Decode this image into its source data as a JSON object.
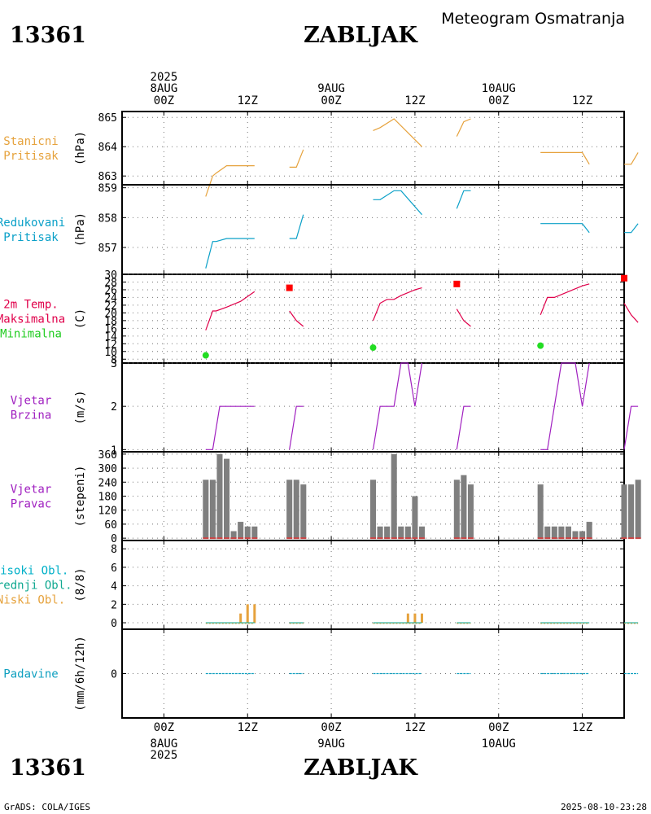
{
  "header": {
    "station_id": "13361",
    "station_name": "ZABLJAK",
    "subtitle": "Meteogram Osmatranja",
    "footer_left": "GrADS: COLA/IGES",
    "footer_right": "2025-08-10-23:28"
  },
  "colors": {
    "pressure": "#e6a23c",
    "reduced": "#0aa0c8",
    "tmax": "#e0004a",
    "tmin": "#22cc22",
    "wind": "#a020c0",
    "bars": "#7f7f7f",
    "highcloud": "#00b0c8",
    "midcloud": "#10a890",
    "lowcloud": "#e6a23c",
    "precip": "#10a0c0",
    "marker_max": "#ff0000",
    "marker_min": "#22dd22",
    "dirbase": "#cc4444"
  },
  "chart_data": {
    "type": "line",
    "x_axis": {
      "unit": "hours since 2025-08-08 00Z",
      "range": [
        -6,
        66
      ],
      "ticks": [
        0,
        12,
        24,
        36,
        48,
        60
      ],
      "hour_labels": [
        "00Z",
        "12Z",
        "00Z",
        "12Z",
        "00Z",
        "12Z"
      ],
      "top_date_labels": [
        {
          "x": 0,
          "lines": [
            "2025",
            "8AUG"
          ]
        },
        {
          "x": 24,
          "lines": [
            "9AUG"
          ]
        },
        {
          "x": 48,
          "lines": [
            "10AUG"
          ]
        }
      ],
      "bottom_date_labels": [
        {
          "x": 0,
          "lines": [
            "8AUG",
            "2025"
          ]
        },
        {
          "x": 24,
          "lines": [
            "9AUG"
          ]
        },
        {
          "x": 48,
          "lines": [
            "10AUG"
          ]
        }
      ]
    },
    "panels": [
      {
        "id": "station-pressure",
        "labels": [
          "Stanicni",
          "Pritisak"
        ],
        "label_colors": [
          "pressure",
          "pressure"
        ],
        "unit": "(hPa)",
        "ylim": [
          862.7,
          865.2
        ],
        "yticks": [
          863,
          864,
          865
        ],
        "ytick_labels": [
          "863",
          "864",
          "865"
        ],
        "series": [
          {
            "name": "Stanicni Pritisak",
            "color": "pressure",
            "segments": [
              [
                [
                  6,
                  862.3
                ],
                [
                  7,
                  863.0
                ],
                [
                  7.5,
                  863.1
                ],
                [
                  9,
                  863.35
                ],
                [
                  13,
                  863.35
                ]
              ],
              [
                [
                  18,
                  863.3
                ],
                [
                  19,
                  863.3
                ],
                [
                  20,
                  863.9
                ]
              ],
              [
                [
                  30,
                  864.55
                ],
                [
                  31,
                  864.65
                ],
                [
                  33,
                  864.95
                ],
                [
                  37,
                  864.0
                ]
              ],
              [
                [
                  42,
                  864.35
                ],
                [
                  43,
                  864.85
                ],
                [
                  44,
                  864.95
                ]
              ],
              [
                [
                  54,
                  863.8
                ],
                [
                  60,
                  863.8
                ],
                [
                  61,
                  863.4
                ]
              ],
              [
                [
                  66,
                  863.4
                ],
                [
                  67,
                  863.4
                ],
                [
                  68,
                  863.8
                ]
              ]
            ]
          }
        ]
      },
      {
        "id": "reduced-pressure",
        "labels": [
          "Redukovani",
          "Pritisak"
        ],
        "label_colors": [
          "reduced",
          "reduced"
        ],
        "unit": "(hPa)",
        "ylim": [
          856.1,
          859.1
        ],
        "yticks": [
          857,
          858,
          859
        ],
        "ytick_labels": [
          "857",
          "858",
          "859"
        ],
        "series": [
          {
            "name": "Redukovani Pritisak",
            "color": "reduced",
            "segments": [
              [
                [
                  6,
                  856.3
                ],
                [
                  7,
                  857.2
                ],
                [
                  7.5,
                  857.2
                ],
                [
                  9,
                  857.3
                ],
                [
                  13,
                  857.3
                ]
              ],
              [
                [
                  18,
                  857.3
                ],
                [
                  19,
                  857.3
                ],
                [
                  20,
                  858.1
                ]
              ],
              [
                [
                  30,
                  858.6
                ],
                [
                  31,
                  858.6
                ],
                [
                  33,
                  858.9
                ],
                [
                  34,
                  858.9
                ],
                [
                  37,
                  858.1
                ]
              ],
              [
                [
                  42,
                  858.3
                ],
                [
                  43,
                  858.9
                ],
                [
                  44,
                  858.9
                ]
              ],
              [
                [
                  54,
                  857.8
                ],
                [
                  60,
                  857.8
                ],
                [
                  61,
                  857.5
                ]
              ],
              [
                [
                  66,
                  857.5
                ],
                [
                  67,
                  857.5
                ],
                [
                  68,
                  857.8
                ]
              ]
            ]
          }
        ]
      },
      {
        "id": "temperature",
        "labels": [
          "2m Temp.",
          "Maksimalna",
          "Minimalna"
        ],
        "label_colors": [
          "tmax",
          "tmax",
          "tmin"
        ],
        "unit": "(C)",
        "ylim": [
          7,
          30
        ],
        "yticks": [
          8,
          10,
          12,
          14,
          16,
          18,
          20,
          22,
          24,
          26,
          28,
          30
        ],
        "ytick_labels": [
          "8",
          "10",
          "12",
          "14",
          "16",
          "18",
          "20",
          "22",
          "24",
          "26",
          "28",
          "30"
        ],
        "series": [
          {
            "name": "2m Temp.",
            "color": "tmax",
            "segments": [
              [
                [
                  6,
                  15.5
                ],
                [
                  7,
                  20.5
                ],
                [
                  7.5,
                  20.5
                ],
                [
                  9,
                  21.5
                ],
                [
                  11,
                  23.0
                ],
                [
                  13,
                  25.5
                ]
              ],
              [
                [
                  18,
                  20.5
                ],
                [
                  19,
                  18.0
                ],
                [
                  20,
                  16.5
                ]
              ],
              [
                [
                  30,
                  18.0
                ],
                [
                  31,
                  22.5
                ],
                [
                  32,
                  23.5
                ],
                [
                  33,
                  23.5
                ],
                [
                  34,
                  24.5
                ],
                [
                  36,
                  26.0
                ],
                [
                  37,
                  26.5
                ]
              ],
              [
                [
                  42,
                  21.0
                ],
                [
                  43,
                  18.0
                ],
                [
                  44,
                  16.5
                ]
              ],
              [
                [
                  54,
                  19.5
                ],
                [
                  55,
                  24.0
                ],
                [
                  56,
                  24.0
                ],
                [
                  58,
                  25.5
                ],
                [
                  60,
                  27.0
                ],
                [
                  61,
                  27.5
                ]
              ],
              [
                [
                  66,
                  22.5
                ],
                [
                  67,
                  19.5
                ],
                [
                  68,
                  17.5
                ]
              ]
            ]
          }
        ],
        "tmax_markers": [
          [
            18,
            26.5
          ],
          [
            42,
            27.5
          ],
          [
            66,
            29.0
          ]
        ],
        "tmin_markers": [
          [
            6,
            9.0
          ],
          [
            30,
            11.0
          ],
          [
            54,
            11.5
          ]
        ]
      },
      {
        "id": "wind-speed",
        "labels": [
          "Vjetar",
          "Brzina"
        ],
        "label_colors": [
          "wind",
          "wind"
        ],
        "unit": "(m/s)",
        "ylim": [
          0.95,
          3.0
        ],
        "yticks": [
          1,
          2,
          3
        ],
        "ytick_labels": [
          "1",
          "2",
          "3"
        ],
        "series": [
          {
            "name": "Vjetar Brzina",
            "color": "wind",
            "segments": [
              [
                [
                  6,
                  1.0
                ],
                [
                  7,
                  1.0
                ],
                [
                  8,
                  2.0
                ],
                [
                  13,
                  2.0
                ]
              ],
              [
                [
                  18,
                  1.0
                ],
                [
                  19,
                  2.0
                ],
                [
                  20,
                  2.0
                ]
              ],
              [
                [
                  30,
                  1.0
                ],
                [
                  31,
                  2.0
                ],
                [
                  33,
                  2.0
                ],
                [
                  34,
                  3.0
                ],
                [
                  35,
                  3.0
                ],
                [
                  36,
                  2.0
                ],
                [
                  37,
                  3.0
                ]
              ],
              [
                [
                  42,
                  1.0
                ],
                [
                  43,
                  2.0
                ],
                [
                  44,
                  2.0
                ]
              ],
              [
                [
                  54,
                  1.0
                ],
                [
                  55,
                  1.0
                ],
                [
                  57,
                  3.0
                ],
                [
                  59,
                  3.0
                ],
                [
                  60,
                  2.0
                ],
                [
                  61,
                  3.0
                ]
              ],
              [
                [
                  66,
                  1.0
                ],
                [
                  67,
                  2.0
                ],
                [
                  68,
                  2.0
                ]
              ]
            ]
          }
        ]
      },
      {
        "id": "wind-direction",
        "labels": [
          "Vjetar",
          "Pravac"
        ],
        "label_colors": [
          "wind",
          "wind"
        ],
        "unit": "(stepeni)",
        "ylim": [
          -10,
          370
        ],
        "yticks": [
          0,
          60,
          120,
          180,
          240,
          300,
          360
        ],
        "ytick_labels": [
          "0",
          "60",
          "120",
          "180",
          "240",
          "300",
          "360"
        ],
        "bars": {
          "color": "bars",
          "x": [
            6,
            7,
            8,
            9,
            10,
            11,
            12,
            13,
            18,
            19,
            20,
            30,
            31,
            32,
            33,
            34,
            35,
            36,
            37,
            42,
            43,
            44,
            54,
            55,
            56,
            57,
            58,
            59,
            60,
            61,
            66,
            67,
            68
          ],
          "values": [
            250,
            250,
            360,
            340,
            30,
            70,
            50,
            50,
            250,
            250,
            230,
            250,
            50,
            50,
            360,
            50,
            50,
            180,
            50,
            250,
            270,
            230,
            230,
            50,
            50,
            50,
            50,
            30,
            30,
            70,
            230,
            230,
            250
          ]
        }
      },
      {
        "id": "clouds",
        "labels": [
          "Visoki Obl.",
          "Srednji Obl.",
          "Niski Obl."
        ],
        "label_colors": [
          "highcloud",
          "midcloud",
          "lowcloud"
        ],
        "unit": "(8/8)",
        "ylim": [
          -0.7,
          8.9
        ],
        "yticks": [
          0,
          2,
          4,
          6,
          8
        ],
        "ytick_labels": [
          "0",
          "2",
          "4",
          "6",
          "8"
        ],
        "low_bars": {
          "color": "lowcloud",
          "x": [
            11,
            12,
            13,
            35,
            36,
            37
          ],
          "values": [
            1,
            2,
            2,
            1,
            1,
            1
          ]
        },
        "baseline_segments": [
          [
            6,
            13
          ],
          [
            18,
            20
          ],
          [
            30,
            37
          ],
          [
            42,
            44
          ],
          [
            54,
            61
          ],
          [
            66,
            68
          ]
        ]
      },
      {
        "id": "precipitation",
        "labels": [
          "Padavine"
        ],
        "label_colors": [
          "precip"
        ],
        "unit": "(mm/6h/12h)",
        "ylim": [
          -1,
          1
        ],
        "yticks": [
          0
        ],
        "ytick_labels": [
          "0"
        ],
        "baseline_segments": [
          [
            6,
            13
          ],
          [
            18,
            20
          ],
          [
            30,
            37
          ],
          [
            42,
            44
          ],
          [
            54,
            61
          ],
          [
            66,
            68
          ]
        ]
      }
    ]
  }
}
